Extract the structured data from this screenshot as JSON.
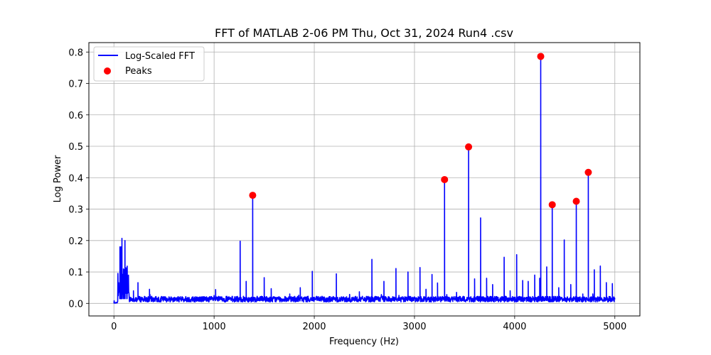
{
  "chart_data": {
    "type": "line",
    "title": "FFT of MATLAB 2-06 PM Thu, Oct 31, 2024 Run4 .csv",
    "xlabel": "Frequency (Hz)",
    "ylabel": "Log Power",
    "xlim": [
      -250,
      5250
    ],
    "ylim": [
      -0.04,
      0.83
    ],
    "xticks": [
      0,
      1000,
      2000,
      3000,
      4000,
      5000
    ],
    "xtick_labels": [
      "0",
      "1000",
      "2000",
      "3000",
      "4000",
      "5000"
    ],
    "yticks": [
      0.0,
      0.1,
      0.2,
      0.3,
      0.4,
      0.5,
      0.6,
      0.7,
      0.8
    ],
    "ytick_labels": [
      "0.0",
      "0.1",
      "0.2",
      "0.3",
      "0.4",
      "0.5",
      "0.6",
      "0.7",
      "0.8"
    ],
    "grid": true,
    "legend_position": "upper-left",
    "series": [
      {
        "name": "Log-Scaled FFT",
        "kind": "line",
        "color": "#0000ff",
        "noise_floor": 0.015,
        "low_freq_hump": {
          "start": 0,
          "end": 150,
          "level": 0.06
        },
        "spikes": [
          {
            "x": 60,
            "y": 0.18
          },
          {
            "x": 70,
            "y": 0.18
          },
          {
            "x": 80,
            "y": 0.207
          },
          {
            "x": 95,
            "y": 0.11
          },
          {
            "x": 110,
            "y": 0.2
          },
          {
            "x": 130,
            "y": 0.112
          },
          {
            "x": 195,
            "y": 0.04
          },
          {
            "x": 240,
            "y": 0.066
          },
          {
            "x": 355,
            "y": 0.045
          },
          {
            "x": 1015,
            "y": 0.044
          },
          {
            "x": 1260,
            "y": 0.198
          },
          {
            "x": 1320,
            "y": 0.07
          },
          {
            "x": 1385,
            "y": 0.344
          },
          {
            "x": 1500,
            "y": 0.082
          },
          {
            "x": 1570,
            "y": 0.047
          },
          {
            "x": 1755,
            "y": 0.03
          },
          {
            "x": 1860,
            "y": 0.05
          },
          {
            "x": 1980,
            "y": 0.102
          },
          {
            "x": 2220,
            "y": 0.094
          },
          {
            "x": 2450,
            "y": 0.037
          },
          {
            "x": 2575,
            "y": 0.14
          },
          {
            "x": 2695,
            "y": 0.07
          },
          {
            "x": 2815,
            "y": 0.111
          },
          {
            "x": 2935,
            "y": 0.1
          },
          {
            "x": 3055,
            "y": 0.114
          },
          {
            "x": 3115,
            "y": 0.045
          },
          {
            "x": 3175,
            "y": 0.092
          },
          {
            "x": 3230,
            "y": 0.065
          },
          {
            "x": 3300,
            "y": 0.394
          },
          {
            "x": 3420,
            "y": 0.035
          },
          {
            "x": 3540,
            "y": 0.498
          },
          {
            "x": 3600,
            "y": 0.078
          },
          {
            "x": 3660,
            "y": 0.272
          },
          {
            "x": 3720,
            "y": 0.08
          },
          {
            "x": 3780,
            "y": 0.06
          },
          {
            "x": 3895,
            "y": 0.147
          },
          {
            "x": 3955,
            "y": 0.04
          },
          {
            "x": 4020,
            "y": 0.155
          },
          {
            "x": 4080,
            "y": 0.073
          },
          {
            "x": 4135,
            "y": 0.07
          },
          {
            "x": 4200,
            "y": 0.09
          },
          {
            "x": 4250,
            "y": 0.08
          },
          {
            "x": 4260,
            "y": 0.786
          },
          {
            "x": 4320,
            "y": 0.116
          },
          {
            "x": 4375,
            "y": 0.314
          },
          {
            "x": 4440,
            "y": 0.05
          },
          {
            "x": 4495,
            "y": 0.202
          },
          {
            "x": 4560,
            "y": 0.06
          },
          {
            "x": 4615,
            "y": 0.325
          },
          {
            "x": 4680,
            "y": 0.03
          },
          {
            "x": 4735,
            "y": 0.417
          },
          {
            "x": 4795,
            "y": 0.107
          },
          {
            "x": 4855,
            "y": 0.119
          },
          {
            "x": 4915,
            "y": 0.066
          },
          {
            "x": 4975,
            "y": 0.063
          }
        ]
      },
      {
        "name": "Peaks",
        "kind": "scatter",
        "color": "#ff0000",
        "points": [
          {
            "x": 1385,
            "y": 0.344
          },
          {
            "x": 3300,
            "y": 0.394
          },
          {
            "x": 3540,
            "y": 0.498
          },
          {
            "x": 4260,
            "y": 0.786
          },
          {
            "x": 4375,
            "y": 0.314
          },
          {
            "x": 4615,
            "y": 0.325
          },
          {
            "x": 4735,
            "y": 0.417
          }
        ]
      }
    ]
  }
}
